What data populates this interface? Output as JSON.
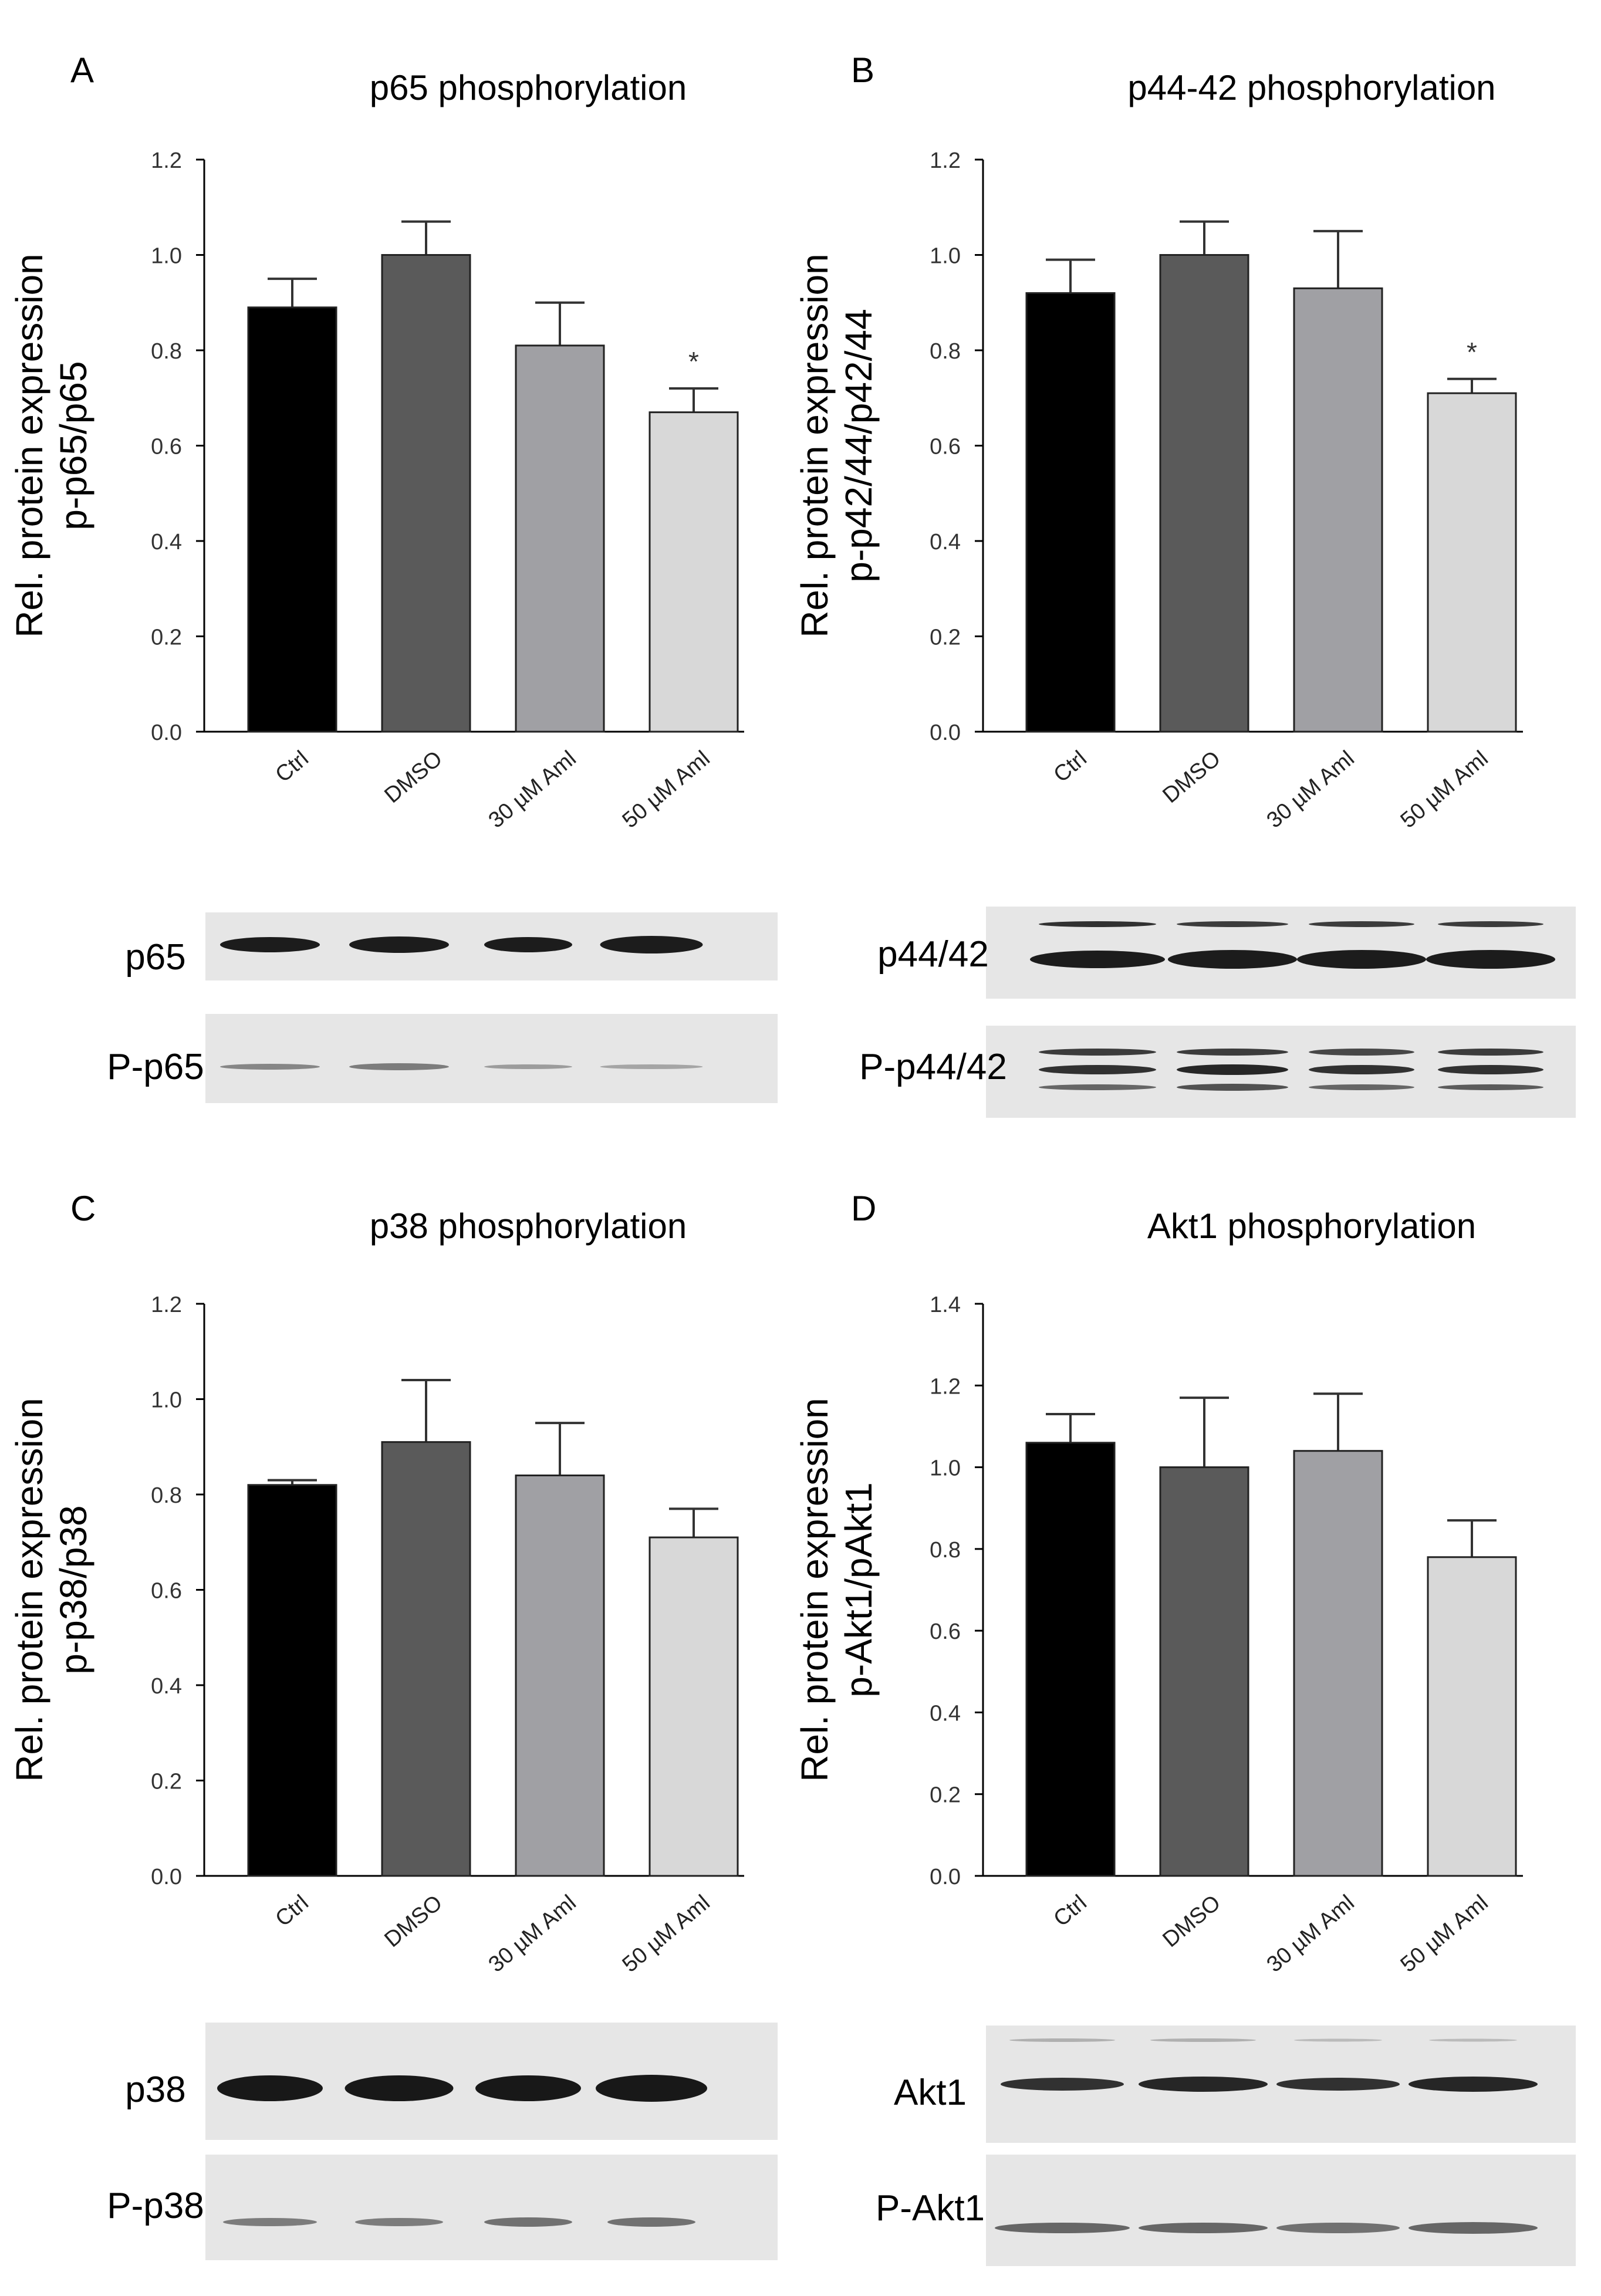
{
  "panels": [
    {
      "letter": "A",
      "title": "p65 phosphorylation",
      "ylabel_lines": [
        "Rel. protein expression",
        "p-p65/p65"
      ],
      "blot_labels": [
        "p65",
        "P-p65"
      ]
    },
    {
      "letter": "B",
      "title": "p44-42 phosphorylation",
      "ylabel_lines": [
        "Rel. protein expression",
        "p-p42/44/p42/44"
      ],
      "blot_labels": [
        "p44/42",
        "P-p44/42"
      ]
    },
    {
      "letter": "C",
      "title": "p38 phosphorylation",
      "ylabel_lines": [
        "Rel. protein expression",
        "p-p38/p38"
      ],
      "blot_labels": [
        "p38",
        "P-p38"
      ]
    },
    {
      "letter": "D",
      "title": "Akt1 phosphorylation",
      "ylabel_lines": [
        "Rel. protein expression",
        "p-Akt1/pAkt1"
      ],
      "blot_labels": [
        "Akt1",
        "P-Akt1"
      ]
    }
  ],
  "colors": [
    "#000000",
    "#5a5a5a",
    "#a0a0a4",
    "#d8d8d8"
  ],
  "chart_data": [
    {
      "type": "bar",
      "title": "p65 phosphorylation",
      "ylabel": "Rel. protein expression p-p65/p65",
      "categories": [
        "Ctrl",
        "DMSO",
        "30 µM Aml",
        "50 µM Aml"
      ],
      "values": [
        0.89,
        1.0,
        0.81,
        0.67
      ],
      "errors": [
        0.06,
        0.07,
        0.09,
        0.05
      ],
      "significance": [
        "",
        "",
        "",
        "*"
      ],
      "ylim": [
        0,
        1.2
      ],
      "yticks": [
        "0.0",
        "0.2",
        "0.4",
        "0.6",
        "0.8",
        "1.0",
        "1.2"
      ]
    },
    {
      "type": "bar",
      "title": "p44-42 phosphorylation",
      "ylabel": "Rel. protein expression p-p42/44/p42/44",
      "categories": [
        "Ctrl",
        "DMSO",
        "30 µM Aml",
        "50 µM Aml"
      ],
      "values": [
        0.92,
        1.0,
        0.93,
        0.71
      ],
      "errors": [
        0.07,
        0.07,
        0.12,
        0.03
      ],
      "significance": [
        "",
        "",
        "",
        "*"
      ],
      "ylim": [
        0,
        1.2
      ],
      "yticks": [
        "0.0",
        "0.2",
        "0.4",
        "0.6",
        "0.8",
        "1.0",
        "1.2"
      ]
    },
    {
      "type": "bar",
      "title": "p38 phosphorylation",
      "ylabel": "Rel. protein expression p-p38/p38",
      "categories": [
        "Ctrl",
        "DMSO",
        "30 µM Aml",
        "50 µM Aml"
      ],
      "values": [
        0.82,
        0.91,
        0.84,
        0.71
      ],
      "errors": [
        0.01,
        0.13,
        0.11,
        0.06
      ],
      "significance": [
        "",
        "",
        "",
        ""
      ],
      "ylim": [
        0,
        1.2
      ],
      "yticks": [
        "0.0",
        "0.2",
        "0.4",
        "0.6",
        "0.8",
        "1.0",
        "1.2"
      ]
    },
    {
      "type": "bar",
      "title": "Akt1 phosphorylation",
      "ylabel": "Rel. protein expression p-Akt1/pAkt1",
      "categories": [
        "Ctrl",
        "DMSO",
        "30 µM Aml",
        "50 µM Aml"
      ],
      "values": [
        1.06,
        1.0,
        1.04,
        0.78
      ],
      "errors": [
        0.07,
        0.17,
        0.14,
        0.09
      ],
      "significance": [
        "",
        "",
        "",
        ""
      ],
      "ylim": [
        0,
        1.4
      ],
      "yticks": [
        "0.0",
        "0.2",
        "0.4",
        "0.6",
        "0.8",
        "1.0",
        "1.2",
        "1.4"
      ]
    }
  ]
}
